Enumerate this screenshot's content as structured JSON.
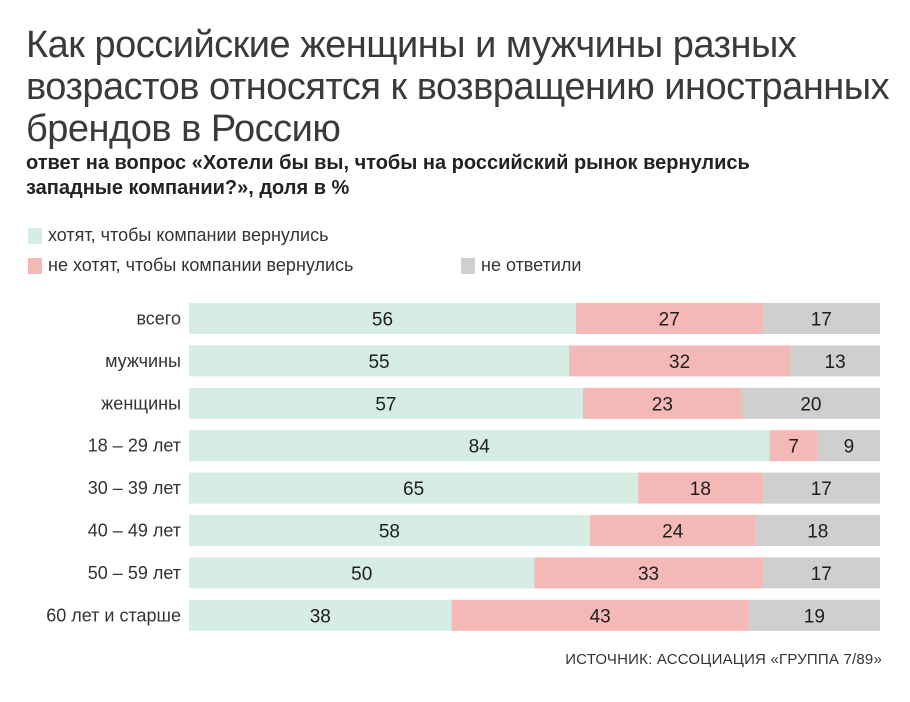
{
  "title_lines": [
    "Как российские женщины и мужчины разных",
    "возрастов относятся к возвращению иностранных",
    "брендов в Россию"
  ],
  "subtitle_lines": [
    "ответ на вопрос «Хотели бы вы, чтобы на российский рынок вернулись",
    "западные компании?», доля в %"
  ],
  "legend": [
    {
      "label": "хотят, чтобы компании вернулись",
      "color": "#d6ede4"
    },
    {
      "label": "не хотят, чтобы компании вернулись",
      "color": "#f4b8b6"
    },
    {
      "label": "не ответили",
      "color": "#cfcfcf"
    }
  ],
  "source": "ИСТОЧНИК: АССОЦИАЦИЯ «ГРУППА 7/89»",
  "chart_data": {
    "type": "bar",
    "orientation": "horizontal",
    "stacked": true,
    "categories": [
      "всего",
      "мужчины",
      "женщины",
      "18 – 29 лет",
      "30 – 39 лет",
      "40 – 49 лет",
      "50 – 59 лет",
      "60 лет и старше"
    ],
    "series": [
      {
        "name": "хотят, чтобы компании вернулись",
        "color": "#d6ede4",
        "values": [
          56,
          55,
          57,
          84,
          65,
          58,
          50,
          38
        ]
      },
      {
        "name": "не хотят, чтобы компании вернулись",
        "color": "#f4b8b6",
        "values": [
          27,
          32,
          23,
          7,
          18,
          24,
          33,
          43
        ]
      },
      {
        "name": "не ответили",
        "color": "#cfcfcf",
        "values": [
          17,
          13,
          20,
          9,
          17,
          18,
          17,
          19
        ]
      }
    ],
    "xlim": [
      0,
      100
    ],
    "grid": false,
    "legend_position": "top-left"
  }
}
